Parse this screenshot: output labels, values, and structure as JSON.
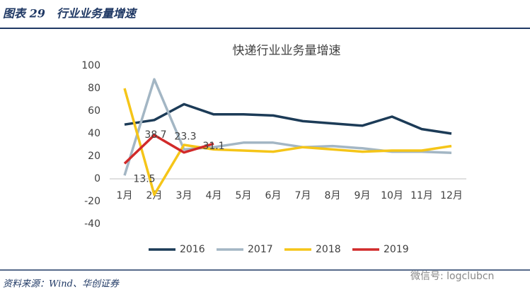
{
  "header": {
    "title": "图表 29　行业业务量增速"
  },
  "chart_data": {
    "type": "line",
    "title": "快递行业业务量增速",
    "categories": [
      "1月",
      "2月",
      "3月",
      "4月",
      "5月",
      "6月",
      "7月",
      "8月",
      "9月",
      "10月",
      "11月",
      "12月"
    ],
    "series": [
      {
        "name": "2016",
        "color": "#1c3b57",
        "values": [
          48,
          52,
          66,
          57,
          57,
          56,
          51,
          49,
          47,
          55,
          44,
          40
        ]
      },
      {
        "name": "2017",
        "color": "#a3b6c4",
        "values": [
          3,
          88,
          26,
          28,
          32,
          32,
          28,
          29,
          27,
          24,
          24,
          23
        ]
      },
      {
        "name": "2018",
        "color": "#f5c518",
        "values": [
          80,
          -14,
          30,
          26,
          25,
          24,
          28,
          26,
          24,
          25,
          25,
          29
        ]
      },
      {
        "name": "2019",
        "color": "#d12a2a",
        "values": [
          13.5,
          38.7,
          23.3,
          31.1,
          null,
          null,
          null,
          null,
          null,
          null,
          null,
          null
        ],
        "data_labels": true
      }
    ],
    "ylim": [
      -40,
      100
    ],
    "yticks": [
      -40,
      -20,
      0,
      20,
      40,
      60,
      80,
      100
    ],
    "grid": false,
    "legend": "bottom"
  },
  "footer": {
    "source": "资料来源：Wind、华创证券",
    "watermark": "微信号: logclubcn"
  }
}
